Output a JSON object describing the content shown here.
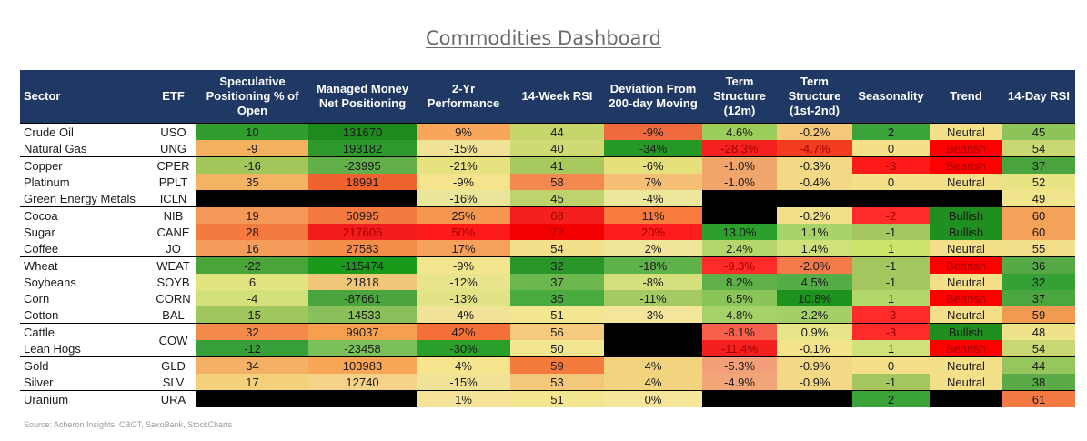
{
  "title": "Commodities Dashboard",
  "source": "Source: Acheron Insights, CBOT, SaxoBank, StockCharts",
  "chart_data": {
    "type": "table",
    "columns": [
      "Sector",
      "ETF",
      "Speculative Positioning % of Open",
      "Managed Money Net Positioning",
      "2-Yr Performance",
      "14-Week RSI",
      "Deviation From 200-day Moving",
      "Term Structure (12m)",
      "Term Structure (1st-2nd)",
      "Seasonality",
      "Trend",
      "14-Day RSI"
    ],
    "rows": [
      [
        "Crude Oil",
        "USO",
        "10",
        "131670",
        "9%",
        "44",
        "-9%",
        "4.6%",
        "-0.2%",
        "2",
        "Neutral",
        "45"
      ],
      [
        "Natural Gas",
        "UNG",
        "-9",
        "193182",
        "-15%",
        "40",
        "-34%",
        "-28.3%",
        "-4.7%",
        "0",
        "Bearish",
        "54"
      ],
      [
        "Copper",
        "CPER",
        "-16",
        "-23995",
        "-21%",
        "41",
        "-6%",
        "-1.0%",
        "-0.3%",
        "-3",
        "Bearish",
        "37"
      ],
      [
        "Platinum",
        "PPLT",
        "35",
        "18991",
        "-9%",
        "58",
        "7%",
        "-1.0%",
        "-0.4%",
        "0",
        "Neutral",
        "52"
      ],
      [
        "Green Energy Metals",
        "ICLN",
        "",
        "",
        "-16%",
        "45",
        "-4%",
        "",
        "",
        "",
        "",
        "49"
      ],
      [
        "Cocoa",
        "NIB",
        "19",
        "50995",
        "25%",
        "68",
        "11%",
        "",
        "-0.2%",
        "-2",
        "Bullish",
        "60"
      ],
      [
        "Sugar",
        "CANE",
        "28",
        "217606",
        "50%",
        "72",
        "20%",
        "13.0%",
        "1.1%",
        "-1",
        "Bullish",
        "60"
      ],
      [
        "Coffee",
        "JO",
        "16",
        "27583",
        "17%",
        "54",
        "2%",
        "2.4%",
        "1.4%",
        "1",
        "Neutral",
        "55"
      ],
      [
        "Wheat",
        "WEAT",
        "-22",
        "-115474",
        "-9%",
        "32",
        "-18%",
        "-9.3%",
        "-2.0%",
        "-1",
        "Bearish",
        "36"
      ],
      [
        "Soybeans",
        "SOYB",
        "6",
        "21818",
        "-12%",
        "37",
        "-8%",
        "8.2%",
        "4.5%",
        "-1",
        "Neutral",
        "32"
      ],
      [
        "Corn",
        "CORN",
        "-4",
        "-87661",
        "-13%",
        "35",
        "-11%",
        "6.5%",
        "10.8%",
        "1",
        "Bearish",
        "37"
      ],
      [
        "Cotton",
        "BAL",
        "-15",
        "-14533",
        "-4%",
        "51",
        "-3%",
        "4.8%",
        "2.2%",
        "-3",
        "Neutral",
        "59"
      ],
      [
        "Cattle",
        "COW",
        "32",
        "99037",
        "42%",
        "56",
        "",
        "-8.1%",
        "0.9%",
        "-3",
        "Bullish",
        "48"
      ],
      [
        "Lean Hogs",
        "",
        "-12",
        "-23458",
        "-30%",
        "50",
        "",
        "-11.4%",
        "-0.1%",
        "1",
        "Bearish",
        "54"
      ],
      [
        "Gold",
        "GLD",
        "34",
        "103983",
        "4%",
        "59",
        "4%",
        "-5.3%",
        "-0.9%",
        "0",
        "Neutral",
        "44"
      ],
      [
        "Silver",
        "SLV",
        "17",
        "12740",
        "-15%",
        "53",
        "4%",
        "-4.9%",
        "-0.9%",
        "-1",
        "Neutral",
        "38"
      ],
      [
        "Uranium",
        "URA",
        "",
        "",
        "1%",
        "51",
        "0%",
        "",
        "",
        "2",
        "",
        "61"
      ]
    ],
    "cell_colors": [
      [
        "#fff",
        "#fff",
        "#2f9e2f",
        "#1e8a1e",
        "#f8a65c",
        "#c6d66a",
        "#f06a3f",
        "#9acd5a",
        "#f5c87a",
        "#3aa33a",
        "#f5e08a",
        "#8cc45a"
      ],
      [
        "#fff",
        "#fff",
        "#f3b05e",
        "#2e9a2e",
        "#f0e398",
        "#cfda72",
        "#249a24",
        "#f52020",
        "#f23b1f",
        "#f5e08a",
        "#ff0000",
        "#c9d872"
      ],
      [
        "#fff",
        "#fff",
        "#a2c65a",
        "#63b04a",
        "#e7e27f",
        "#a8c95d",
        "#e6e07c",
        "#f0a56b",
        "#f3d985",
        "#ff1a1a",
        "#ff0000",
        "#49a43d"
      ],
      [
        "#fff",
        "#fff",
        "#f4b263",
        "#f0622e",
        "#f4e48d",
        "#f4894f",
        "#f5bf76",
        "#f0a56b",
        "#f3d985",
        "#f5e08a",
        "#f5e08a",
        "#e8e383"
      ],
      [
        "#fff",
        "#fff",
        "#000000",
        "#000000",
        "#e9e59a",
        "#bfd36d",
        "#ece79a",
        "#000000",
        "#000000",
        "#000000",
        "#000000",
        "#f0e58c"
      ],
      [
        "#fff",
        "#fff",
        "#f49857",
        "#f47a3f",
        "#f4964f",
        "#f42020",
        "#f97b3e",
        "#000000",
        "#f3e18a",
        "#ff2a2a",
        "#1f8f1f",
        "#f5a25a"
      ],
      [
        "#fff",
        "#fff",
        "#f47a40",
        "#f21c1c",
        "#ff1a1a",
        "#f20000",
        "#ff1c1c",
        "#2c9f2c",
        "#a8d26a",
        "#a3c75e",
        "#1f8f1f",
        "#f5a25a"
      ],
      [
        "#fff",
        "#fff",
        "#f49c5a",
        "#f48c4a",
        "#f5a15a",
        "#f3e08a",
        "#f1e59a",
        "#b4d66d",
        "#cfe27a",
        "#cce46a",
        "#f5e08a",
        "#f2e08a"
      ],
      [
        "#fff",
        "#fff",
        "#4aa43a",
        "#1a9a1a",
        "#f3e48e",
        "#2a962a",
        "#5db24a",
        "#ff2a2a",
        "#f57a4a",
        "#a3c75e",
        "#ff0000",
        "#57a948"
      ],
      [
        "#fff",
        "#fff",
        "#e2e47f",
        "#f0c77a",
        "#e8e38d",
        "#6db84e",
        "#d5df7c",
        "#60b04a",
        "#55ad48",
        "#a3c75e",
        "#f5e08a",
        "#35a036"
      ],
      [
        "#fff",
        "#fff",
        "#d3e07a",
        "#4aa53e",
        "#e2e386",
        "#4aab3f",
        "#a4cb63",
        "#8ac55a",
        "#1e921e",
        "#b3d86a",
        "#ff0000",
        "#4aa63e"
      ],
      [
        "#fff",
        "#fff",
        "#9fc75e",
        "#8ac05c",
        "#f0e398",
        "#f3e690",
        "#f3e59a",
        "#a6d26a",
        "#a4cf68",
        "#ff2a2a",
        "#f5e08a",
        "#f39a52"
      ],
      [
        "#fff",
        "#fff",
        "#f48a4a",
        "#f4a050",
        "#f47038",
        "#f4ca7d",
        "#000000",
        "#f4604a",
        "#e7e58a",
        "#ff2a2a",
        "#1f8f1f",
        "#f0e28a"
      ],
      [
        "#fff",
        "#fff",
        "#38a03a",
        "#7cc05a",
        "#2a9f2a",
        "#f3e690",
        "#000000",
        "#f42020",
        "#f3e38a",
        "#cfe27a",
        "#ff0000",
        "#c9d872"
      ],
      [
        "#fff",
        "#fff",
        "#f4b065",
        "#f8a655",
        "#f4e58e",
        "#f47b3d",
        "#f2d47e",
        "#f3a07a",
        "#f3d985",
        "#f5e08a",
        "#f5e08a",
        "#98c65e"
      ],
      [
        "#fff",
        "#fff",
        "#f4d07a",
        "#f4d288",
        "#f0e398",
        "#f4c87a",
        "#f2d47e",
        "#f3a57a",
        "#f3d985",
        "#a3c75e",
        "#f5e08a",
        "#5aaa48"
      ],
      [
        "#fff",
        "#fff",
        "#000000",
        "#000000",
        "#f5e39a",
        "#f3e690",
        "#f5e69a",
        "#000000",
        "#000000",
        "#3aa33a",
        "#000000",
        "#f37a42"
      ]
    ],
    "groups": [
      [
        0,
        1
      ],
      [
        2,
        3,
        4
      ],
      [
        5,
        6,
        7
      ],
      [
        8,
        9,
        10,
        11
      ],
      [
        12,
        13
      ],
      [
        14,
        15
      ],
      [
        16
      ]
    ]
  }
}
